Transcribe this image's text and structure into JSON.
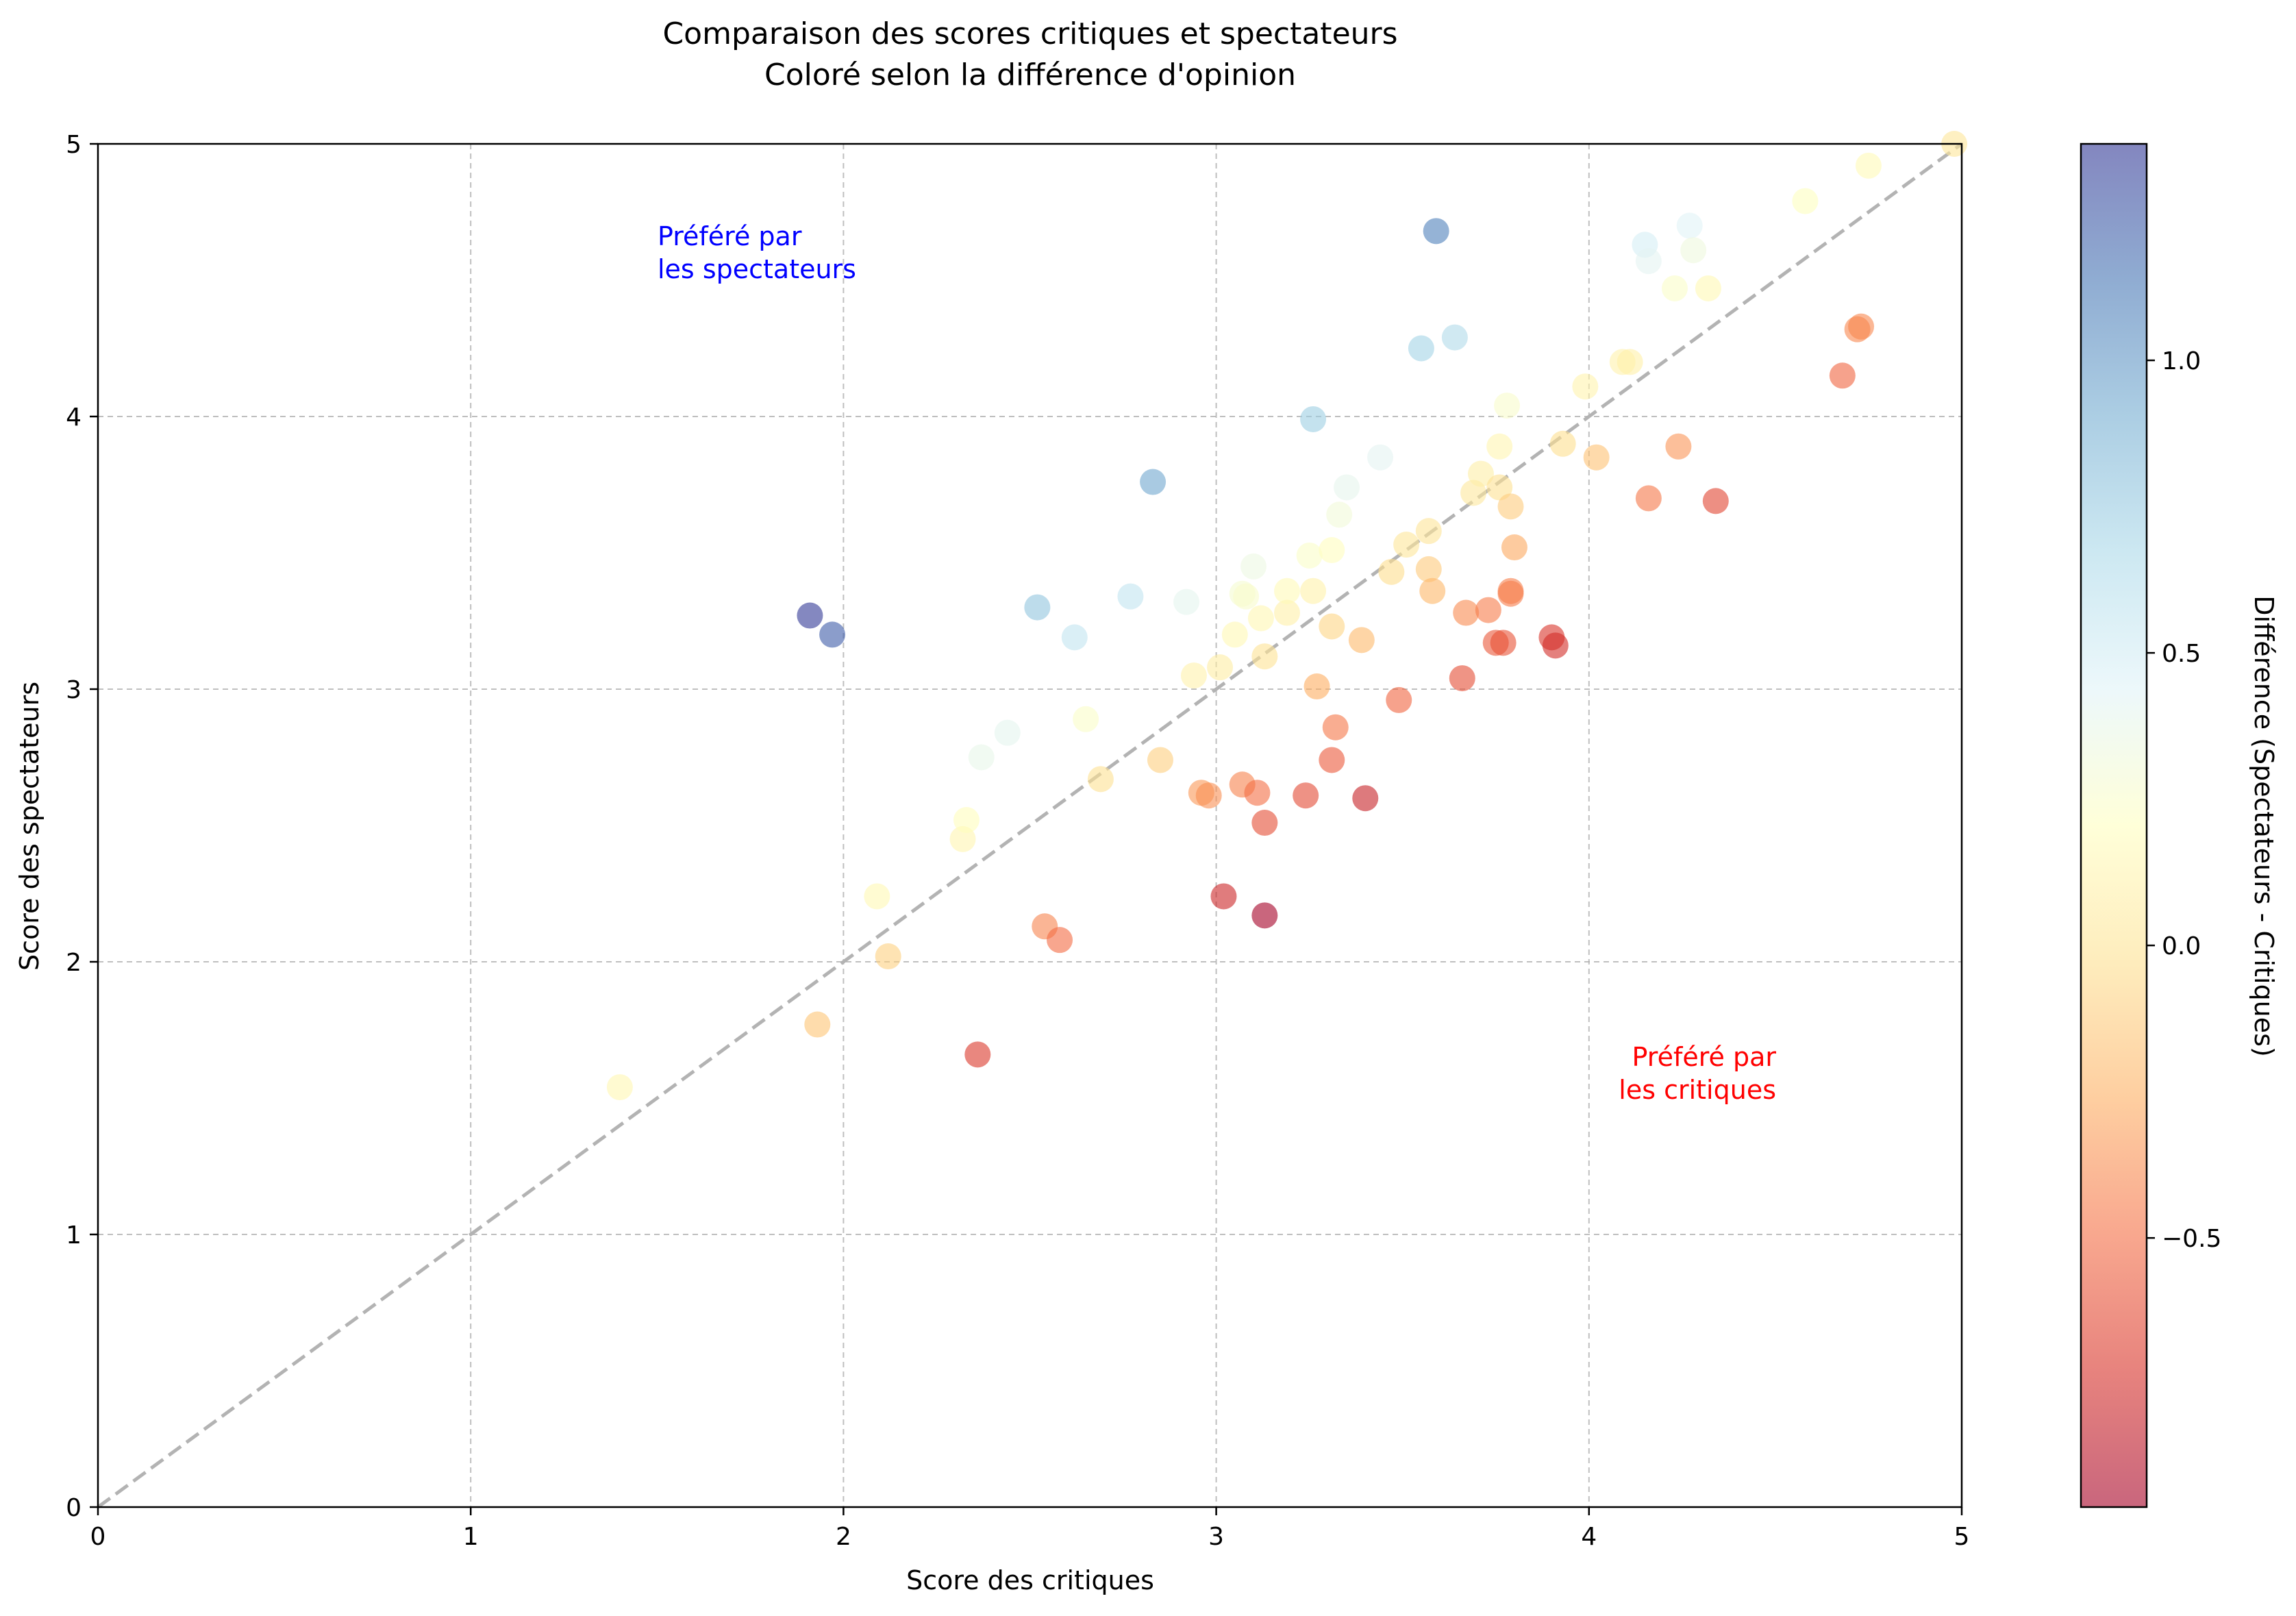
{
  "chart_data": {
    "type": "scatter",
    "title_lines": [
      "Comparaison des scores critiques et spectateurs",
      "Coloré selon la différence d'opinion"
    ],
    "xlabel": "Score des critiques",
    "ylabel": "Score des spectateurs",
    "xlim": [
      0,
      5
    ],
    "ylim": [
      0,
      5
    ],
    "xticks": [
      "0",
      "1",
      "2",
      "3",
      "4",
      "5"
    ],
    "yticks": [
      "0",
      "1",
      "2",
      "3",
      "4",
      "5"
    ],
    "grid": true,
    "reference_line": {
      "from": [
        0,
        0
      ],
      "to": [
        5,
        5
      ],
      "style": "dashed",
      "color": "#b3b3b3"
    },
    "annotations": [
      {
        "text_lines": [
          "Préféré par",
          "les spectateurs"
        ],
        "x": 1.5,
        "y": 4.5,
        "color": "#0000ff",
        "align": "left"
      },
      {
        "text_lines": [
          "Préféré par",
          "les critiques"
        ],
        "x": 4.5,
        "y": 1.5,
        "color": "#ff0000",
        "align": "right"
      }
    ],
    "colorbar": {
      "label": "Différence (Spectateurs - Critiques)",
      "colormap": "RdYlBu",
      "range": [
        -0.96,
        1.37
      ],
      "tick_labels": [
        "1.0",
        "0.5",
        "0.0",
        "−0.5"
      ],
      "tick_values": [
        1.0,
        0.5,
        0.0,
        -0.5
      ]
    },
    "points": [
      [
        1.4,
        1.54
      ],
      [
        1.91,
        3.27
      ],
      [
        1.97,
        3.2
      ],
      [
        1.93,
        1.77
      ],
      [
        2.09,
        2.24
      ],
      [
        2.12,
        2.02
      ],
      [
        2.32,
        2.45
      ],
      [
        2.33,
        2.52
      ],
      [
        2.36,
        1.66
      ],
      [
        2.37,
        2.75
      ],
      [
        2.44,
        2.84
      ],
      [
        2.52,
        3.3
      ],
      [
        2.54,
        2.13
      ],
      [
        2.58,
        2.08
      ],
      [
        2.62,
        3.19
      ],
      [
        2.65,
        2.89
      ],
      [
        2.69,
        2.67
      ],
      [
        2.77,
        3.34
      ],
      [
        2.83,
        3.76
      ],
      [
        2.85,
        2.74
      ],
      [
        2.92,
        3.32
      ],
      [
        2.94,
        3.05
      ],
      [
        2.96,
        2.62
      ],
      [
        2.98,
        2.61
      ],
      [
        3.01,
        3.08
      ],
      [
        3.02,
        2.24
      ],
      [
        3.05,
        3.2
      ],
      [
        3.07,
        3.35
      ],
      [
        3.07,
        2.65
      ],
      [
        3.08,
        3.34
      ],
      [
        3.1,
        3.45
      ],
      [
        3.11,
        2.62
      ],
      [
        3.12,
        3.26
      ],
      [
        3.13,
        3.12
      ],
      [
        3.13,
        2.51
      ],
      [
        3.13,
        2.17
      ],
      [
        3.19,
        3.28
      ],
      [
        3.19,
        3.36
      ],
      [
        3.24,
        2.61
      ],
      [
        3.25,
        3.49
      ],
      [
        3.26,
        3.36
      ],
      [
        3.26,
        3.99
      ],
      [
        3.27,
        3.01
      ],
      [
        3.31,
        3.23
      ],
      [
        3.31,
        3.51
      ],
      [
        3.31,
        2.74
      ],
      [
        3.32,
        2.86
      ],
      [
        3.33,
        3.64
      ],
      [
        3.35,
        3.74
      ],
      [
        3.39,
        3.18
      ],
      [
        3.4,
        2.6
      ],
      [
        3.44,
        3.85
      ],
      [
        3.47,
        3.43
      ],
      [
        3.49,
        2.96
      ],
      [
        3.51,
        3.53
      ],
      [
        3.55,
        4.25
      ],
      [
        3.57,
        3.58
      ],
      [
        3.57,
        3.44
      ],
      [
        3.58,
        3.36
      ],
      [
        3.59,
        4.68
      ],
      [
        3.64,
        4.29
      ],
      [
        3.66,
        3.04
      ],
      [
        3.67,
        3.28
      ],
      [
        3.69,
        3.72
      ],
      [
        3.71,
        3.79
      ],
      [
        3.73,
        3.29
      ],
      [
        3.75,
        3.17
      ],
      [
        3.76,
        3.89
      ],
      [
        3.76,
        3.74
      ],
      [
        3.77,
        3.17
      ],
      [
        3.78,
        4.04
      ],
      [
        3.79,
        3.35
      ],
      [
        3.79,
        3.36
      ],
      [
        3.79,
        3.67
      ],
      [
        3.8,
        3.52
      ],
      [
        3.9,
        3.19
      ],
      [
        3.91,
        3.16
      ],
      [
        3.93,
        3.9
      ],
      [
        3.99,
        4.11
      ],
      [
        4.02,
        3.85
      ],
      [
        4.09,
        4.2
      ],
      [
        4.11,
        4.2
      ],
      [
        4.15,
        4.63
      ],
      [
        4.16,
        4.57
      ],
      [
        4.16,
        3.7
      ],
      [
        4.23,
        4.47
      ],
      [
        4.24,
        3.89
      ],
      [
        4.27,
        4.7
      ],
      [
        4.28,
        4.61
      ],
      [
        4.32,
        4.47
      ],
      [
        4.34,
        3.69
      ],
      [
        4.58,
        4.79
      ],
      [
        4.68,
        4.15
      ],
      [
        4.72,
        4.32
      ],
      [
        4.73,
        4.33
      ],
      [
        4.75,
        4.92
      ],
      [
        4.98,
        5.0
      ]
    ]
  }
}
